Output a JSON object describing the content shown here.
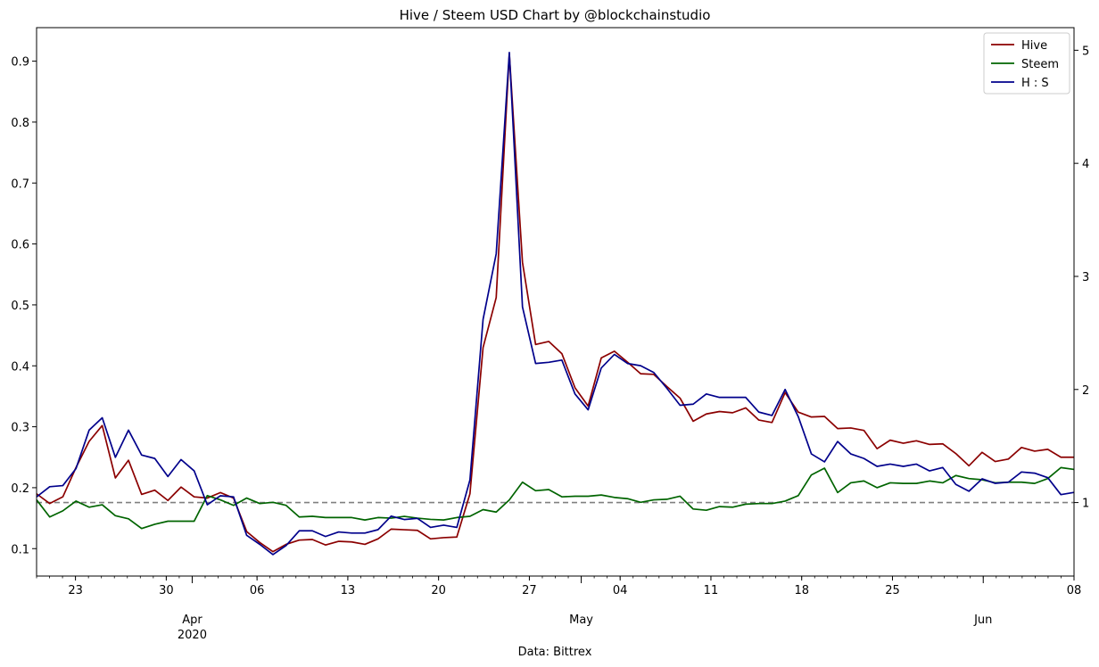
{
  "chart_data": {
    "type": "line",
    "title": "Hive / Steem USD Chart by @blockchainstudio",
    "xlabel": "Data: Bittrex",
    "x_start": "2020-03-20",
    "x_end": "2020-06-08",
    "left_ylim": [
      0.055,
      0.955
    ],
    "left_yticks": [
      "0.1",
      "0.2",
      "0.3",
      "0.4",
      "0.5",
      "0.6",
      "0.7",
      "0.8",
      "0.9"
    ],
    "right_ylim": [
      0.35,
      5.2
    ],
    "right_yticks": [
      "1",
      "2",
      "3",
      "4",
      "5"
    ],
    "reference_line": {
      "axis": "right",
      "value": 1.0,
      "style": "dashed",
      "color": "#808080"
    },
    "x_major_ticks": [
      {
        "date": "2020-03-23",
        "label": "23"
      },
      {
        "date": "2020-03-30",
        "label": "30"
      },
      {
        "date": "2020-04-06",
        "label": "06"
      },
      {
        "date": "2020-04-13",
        "label": "13"
      },
      {
        "date": "2020-04-20",
        "label": "20"
      },
      {
        "date": "2020-04-27",
        "label": "27"
      },
      {
        "date": "2020-05-04",
        "label": "04"
      },
      {
        "date": "2020-05-11",
        "label": "11"
      },
      {
        "date": "2020-05-18",
        "label": "18"
      },
      {
        "date": "2020-05-25",
        "label": "25"
      },
      {
        "date": "2020-06-08",
        "label": "08"
      }
    ],
    "x_month_labels": [
      {
        "date": "2020-04-01",
        "label": "Apr"
      },
      {
        "date": "2020-05-01",
        "label": "May"
      },
      {
        "date": "2020-06-01",
        "label": "Jun"
      }
    ],
    "x_year_label": {
      "date": "2020-04-01",
      "label": "2020"
    },
    "legend": {
      "position": "top-right"
    },
    "series": [
      {
        "name": "Hive",
        "axis": "left",
        "color": "#8b0000",
        "values": [
          0.19,
          0.174,
          0.185,
          0.233,
          0.276,
          0.302,
          0.216,
          0.245,
          0.189,
          0.196,
          0.179,
          0.201,
          0.185,
          0.183,
          0.192,
          0.183,
          0.128,
          0.11,
          0.095,
          0.107,
          0.114,
          0.115,
          0.106,
          0.112,
          0.111,
          0.107,
          0.116,
          0.132,
          0.131,
          0.13,
          0.116,
          0.118,
          0.119,
          0.19,
          0.43,
          0.512,
          0.912,
          0.57,
          0.435,
          0.44,
          0.42,
          0.364,
          0.334,
          0.413,
          0.424,
          0.406,
          0.387,
          0.386,
          0.366,
          0.347,
          0.309,
          0.321,
          0.325,
          0.323,
          0.331,
          0.311,
          0.307,
          0.356,
          0.324,
          0.316,
          0.317,
          0.297,
          0.298,
          0.294,
          0.264,
          0.278,
          0.273,
          0.277,
          0.271,
          0.272,
          0.256,
          0.236,
          0.258,
          0.243,
          0.247,
          0.266,
          0.26,
          0.263,
          0.25,
          0.25
        ]
      },
      {
        "name": "Steem",
        "axis": "left",
        "color": "#006400",
        "values": [
          0.18,
          0.152,
          0.162,
          0.178,
          0.168,
          0.172,
          0.154,
          0.149,
          0.133,
          0.14,
          0.145,
          0.145,
          0.145,
          0.187,
          0.18,
          0.171,
          0.183,
          0.174,
          0.176,
          0.171,
          0.152,
          0.153,
          0.151,
          0.151,
          0.151,
          0.147,
          0.151,
          0.15,
          0.153,
          0.15,
          0.148,
          0.147,
          0.151,
          0.153,
          0.164,
          0.16,
          0.18,
          0.209,
          0.195,
          0.197,
          0.185,
          0.186,
          0.186,
          0.188,
          0.184,
          0.182,
          0.176,
          0.18,
          0.181,
          0.186,
          0.165,
          0.163,
          0.169,
          0.168,
          0.173,
          0.174,
          0.174,
          0.178,
          0.187,
          0.221,
          0.232,
          0.192,
          0.208,
          0.211,
          0.2,
          0.208,
          0.207,
          0.207,
          0.211,
          0.208,
          0.22,
          0.215,
          0.213,
          0.208,
          0.209,
          0.209,
          0.207,
          0.215,
          0.233,
          0.23
        ]
      },
      {
        "name": "H : S",
        "axis": "right",
        "color": "#00008b",
        "values": [
          1.05,
          1.14,
          1.15,
          1.3,
          1.64,
          1.75,
          1.4,
          1.64,
          1.42,
          1.39,
          1.23,
          1.38,
          1.28,
          0.98,
          1.06,
          1.05,
          0.71,
          0.63,
          0.54,
          0.62,
          0.75,
          0.75,
          0.7,
          0.74,
          0.73,
          0.73,
          0.76,
          0.88,
          0.85,
          0.86,
          0.78,
          0.8,
          0.78,
          1.2,
          2.62,
          3.2,
          4.98,
          2.73,
          2.23,
          2.24,
          2.26,
          1.96,
          1.82,
          2.19,
          2.31,
          2.23,
          2.21,
          2.15,
          2.01,
          1.86,
          1.87,
          1.96,
          1.93,
          1.93,
          1.93,
          1.8,
          1.77,
          2,
          1.76,
          1.43,
          1.36,
          1.54,
          1.43,
          1.39,
          1.32,
          1.34,
          1.32,
          1.34,
          1.28,
          1.31,
          1.16,
          1.1,
          1.21,
          1.17,
          1.18,
          1.27,
          1.26,
          1.22,
          1.07,
          1.09
        ]
      }
    ]
  }
}
